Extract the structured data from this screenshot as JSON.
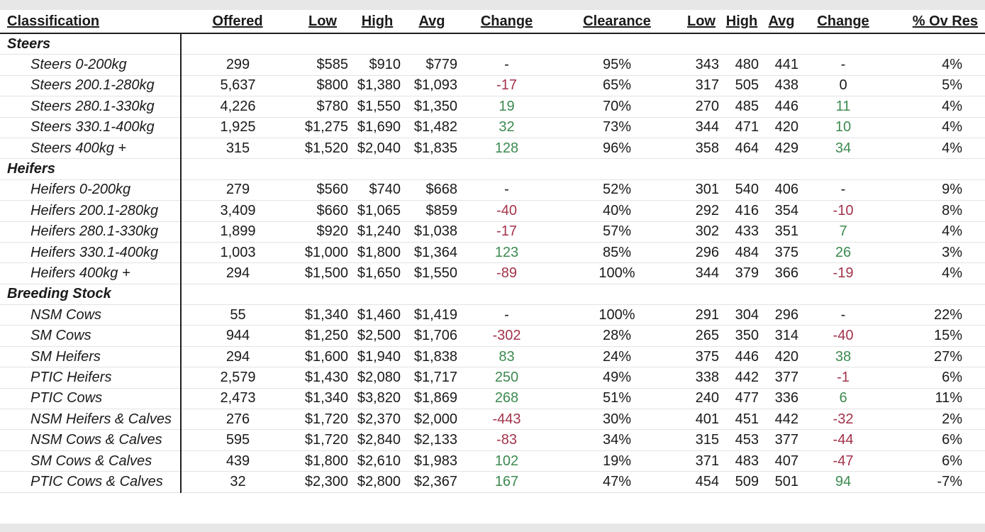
{
  "headers": {
    "classification": "Classification",
    "offered": "Offered",
    "low": "Low",
    "high": "High",
    "avg": "Avg",
    "change": "Change",
    "clearance": "Clearance",
    "low2": "Low",
    "high2": "High",
    "avg2": "Avg",
    "change2": "Change",
    "ov_res": "% Ov Res"
  },
  "sections": [
    {
      "name": "Steers",
      "rows": [
        {
          "classification": "Steers 0-200kg",
          "offered": "299",
          "low": "$585",
          "high": "$910",
          "avg": "$779",
          "change": "-",
          "clearance": "95%",
          "low2": "343",
          "high2": "480",
          "avg2": "441",
          "change2": "-",
          "ov_res": "4%"
        },
        {
          "classification": "Steers 200.1-280kg",
          "offered": "5,637",
          "low": "$800",
          "high": "$1,380",
          "avg": "$1,093",
          "change": "-17",
          "clearance": "65%",
          "low2": "317",
          "high2": "505",
          "avg2": "438",
          "change2": "0",
          "ov_res": "5%"
        },
        {
          "classification": "Steers 280.1-330kg",
          "offered": "4,226",
          "low": "$780",
          "high": "$1,550",
          "avg": "$1,350",
          "change": "19",
          "clearance": "70%",
          "low2": "270",
          "high2": "485",
          "avg2": "446",
          "change2": "11",
          "ov_res": "4%"
        },
        {
          "classification": "Steers 330.1-400kg",
          "offered": "1,925",
          "low": "$1,275",
          "high": "$1,690",
          "avg": "$1,482",
          "change": "32",
          "clearance": "73%",
          "low2": "344",
          "high2": "471",
          "avg2": "420",
          "change2": "10",
          "ov_res": "4%"
        },
        {
          "classification": "Steers 400kg +",
          "offered": "315",
          "low": "$1,520",
          "high": "$2,040",
          "avg": "$1,835",
          "change": "128",
          "clearance": "96%",
          "low2": "358",
          "high2": "464",
          "avg2": "429",
          "change2": "34",
          "ov_res": "4%"
        }
      ]
    },
    {
      "name": "Heifers",
      "rows": [
        {
          "classification": "Heifers 0-200kg",
          "offered": "279",
          "low": "$560",
          "high": "$740",
          "avg": "$668",
          "change": "-",
          "clearance": "52%",
          "low2": "301",
          "high2": "540",
          "avg2": "406",
          "change2": "-",
          "ov_res": "9%"
        },
        {
          "classification": "Heifers 200.1-280kg",
          "offered": "3,409",
          "low": "$660",
          "high": "$1,065",
          "avg": "$859",
          "change": "-40",
          "clearance": "40%",
          "low2": "292",
          "high2": "416",
          "avg2": "354",
          "change2": "-10",
          "ov_res": "8%"
        },
        {
          "classification": "Heifers 280.1-330kg",
          "offered": "1,899",
          "low": "$920",
          "high": "$1,240",
          "avg": "$1,038",
          "change": "-17",
          "clearance": "57%",
          "low2": "302",
          "high2": "433",
          "avg2": "351",
          "change2": "7",
          "ov_res": "4%"
        },
        {
          "classification": "Heifers 330.1-400kg",
          "offered": "1,003",
          "low": "$1,000",
          "high": "$1,800",
          "avg": "$1,364",
          "change": "123",
          "clearance": "85%",
          "low2": "296",
          "high2": "484",
          "avg2": "375",
          "change2": "26",
          "ov_res": "3%"
        },
        {
          "classification": "Heifers 400kg +",
          "offered": "294",
          "low": "$1,500",
          "high": "$1,650",
          "avg": "$1,550",
          "change": "-89",
          "clearance": "100%",
          "low2": "344",
          "high2": "379",
          "avg2": "366",
          "change2": "-19",
          "ov_res": "4%"
        }
      ]
    },
    {
      "name": "Breeding Stock",
      "rows": [
        {
          "classification": "NSM Cows",
          "offered": "55",
          "low": "$1,340",
          "high": "$1,460",
          "avg": "$1,419",
          "change": "-",
          "clearance": "100%",
          "low2": "291",
          "high2": "304",
          "avg2": "296",
          "change2": "-",
          "ov_res": "22%"
        },
        {
          "classification": "SM Cows",
          "offered": "944",
          "low": "$1,250",
          "high": "$2,500",
          "avg": "$1,706",
          "change": "-302",
          "clearance": "28%",
          "low2": "265",
          "high2": "350",
          "avg2": "314",
          "change2": "-40",
          "ov_res": "15%"
        },
        {
          "classification": "SM Heifers",
          "offered": "294",
          "low": "$1,600",
          "high": "$1,940",
          "avg": "$1,838",
          "change": "83",
          "clearance": "24%",
          "low2": "375",
          "high2": "446",
          "avg2": "420",
          "change2": "38",
          "ov_res": "27%"
        },
        {
          "classification": "PTIC Heifers",
          "offered": "2,579",
          "low": "$1,430",
          "high": "$2,080",
          "avg": "$1,717",
          "change": "250",
          "clearance": "49%",
          "low2": "338",
          "high2": "442",
          "avg2": "377",
          "change2": "-1",
          "ov_res": "6%"
        },
        {
          "classification": "PTIC Cows",
          "offered": "2,473",
          "low": "$1,340",
          "high": "$3,820",
          "avg": "$1,869",
          "change": "268",
          "clearance": "51%",
          "low2": "240",
          "high2": "477",
          "avg2": "336",
          "change2": "6",
          "ov_res": "11%"
        },
        {
          "classification": "NSM Heifers & Calves",
          "offered": "276",
          "low": "$1,720",
          "high": "$2,370",
          "avg": "$2,000",
          "change": "-443",
          "clearance": "30%",
          "low2": "401",
          "high2": "451",
          "avg2": "442",
          "change2": "-32",
          "ov_res": "2%"
        },
        {
          "classification": "NSM Cows & Calves",
          "offered": "595",
          "low": "$1,720",
          "high": "$2,840",
          "avg": "$2,133",
          "change": "-83",
          "clearance": "34%",
          "low2": "315",
          "high2": "453",
          "avg2": "377",
          "change2": "-44",
          "ov_res": "6%"
        },
        {
          "classification": "SM Cows & Calves",
          "offered": "439",
          "low": "$1,800",
          "high": "$2,610",
          "avg": "$1,983",
          "change": "102",
          "clearance": "19%",
          "low2": "371",
          "high2": "483",
          "avg2": "407",
          "change2": "-47",
          "ov_res": "6%"
        },
        {
          "classification": "PTIC Cows & Calves",
          "offered": "32",
          "low": "$2,300",
          "high": "$2,800",
          "avg": "$2,367",
          "change": "167",
          "clearance": "47%",
          "low2": "454",
          "high2": "509",
          "avg2": "501",
          "change2": "94",
          "ov_res": "-7%"
        }
      ]
    }
  ],
  "colors": {
    "negative": "#a3334a",
    "positive": "#3c8a50",
    "neutral": "#1a1a1a"
  }
}
